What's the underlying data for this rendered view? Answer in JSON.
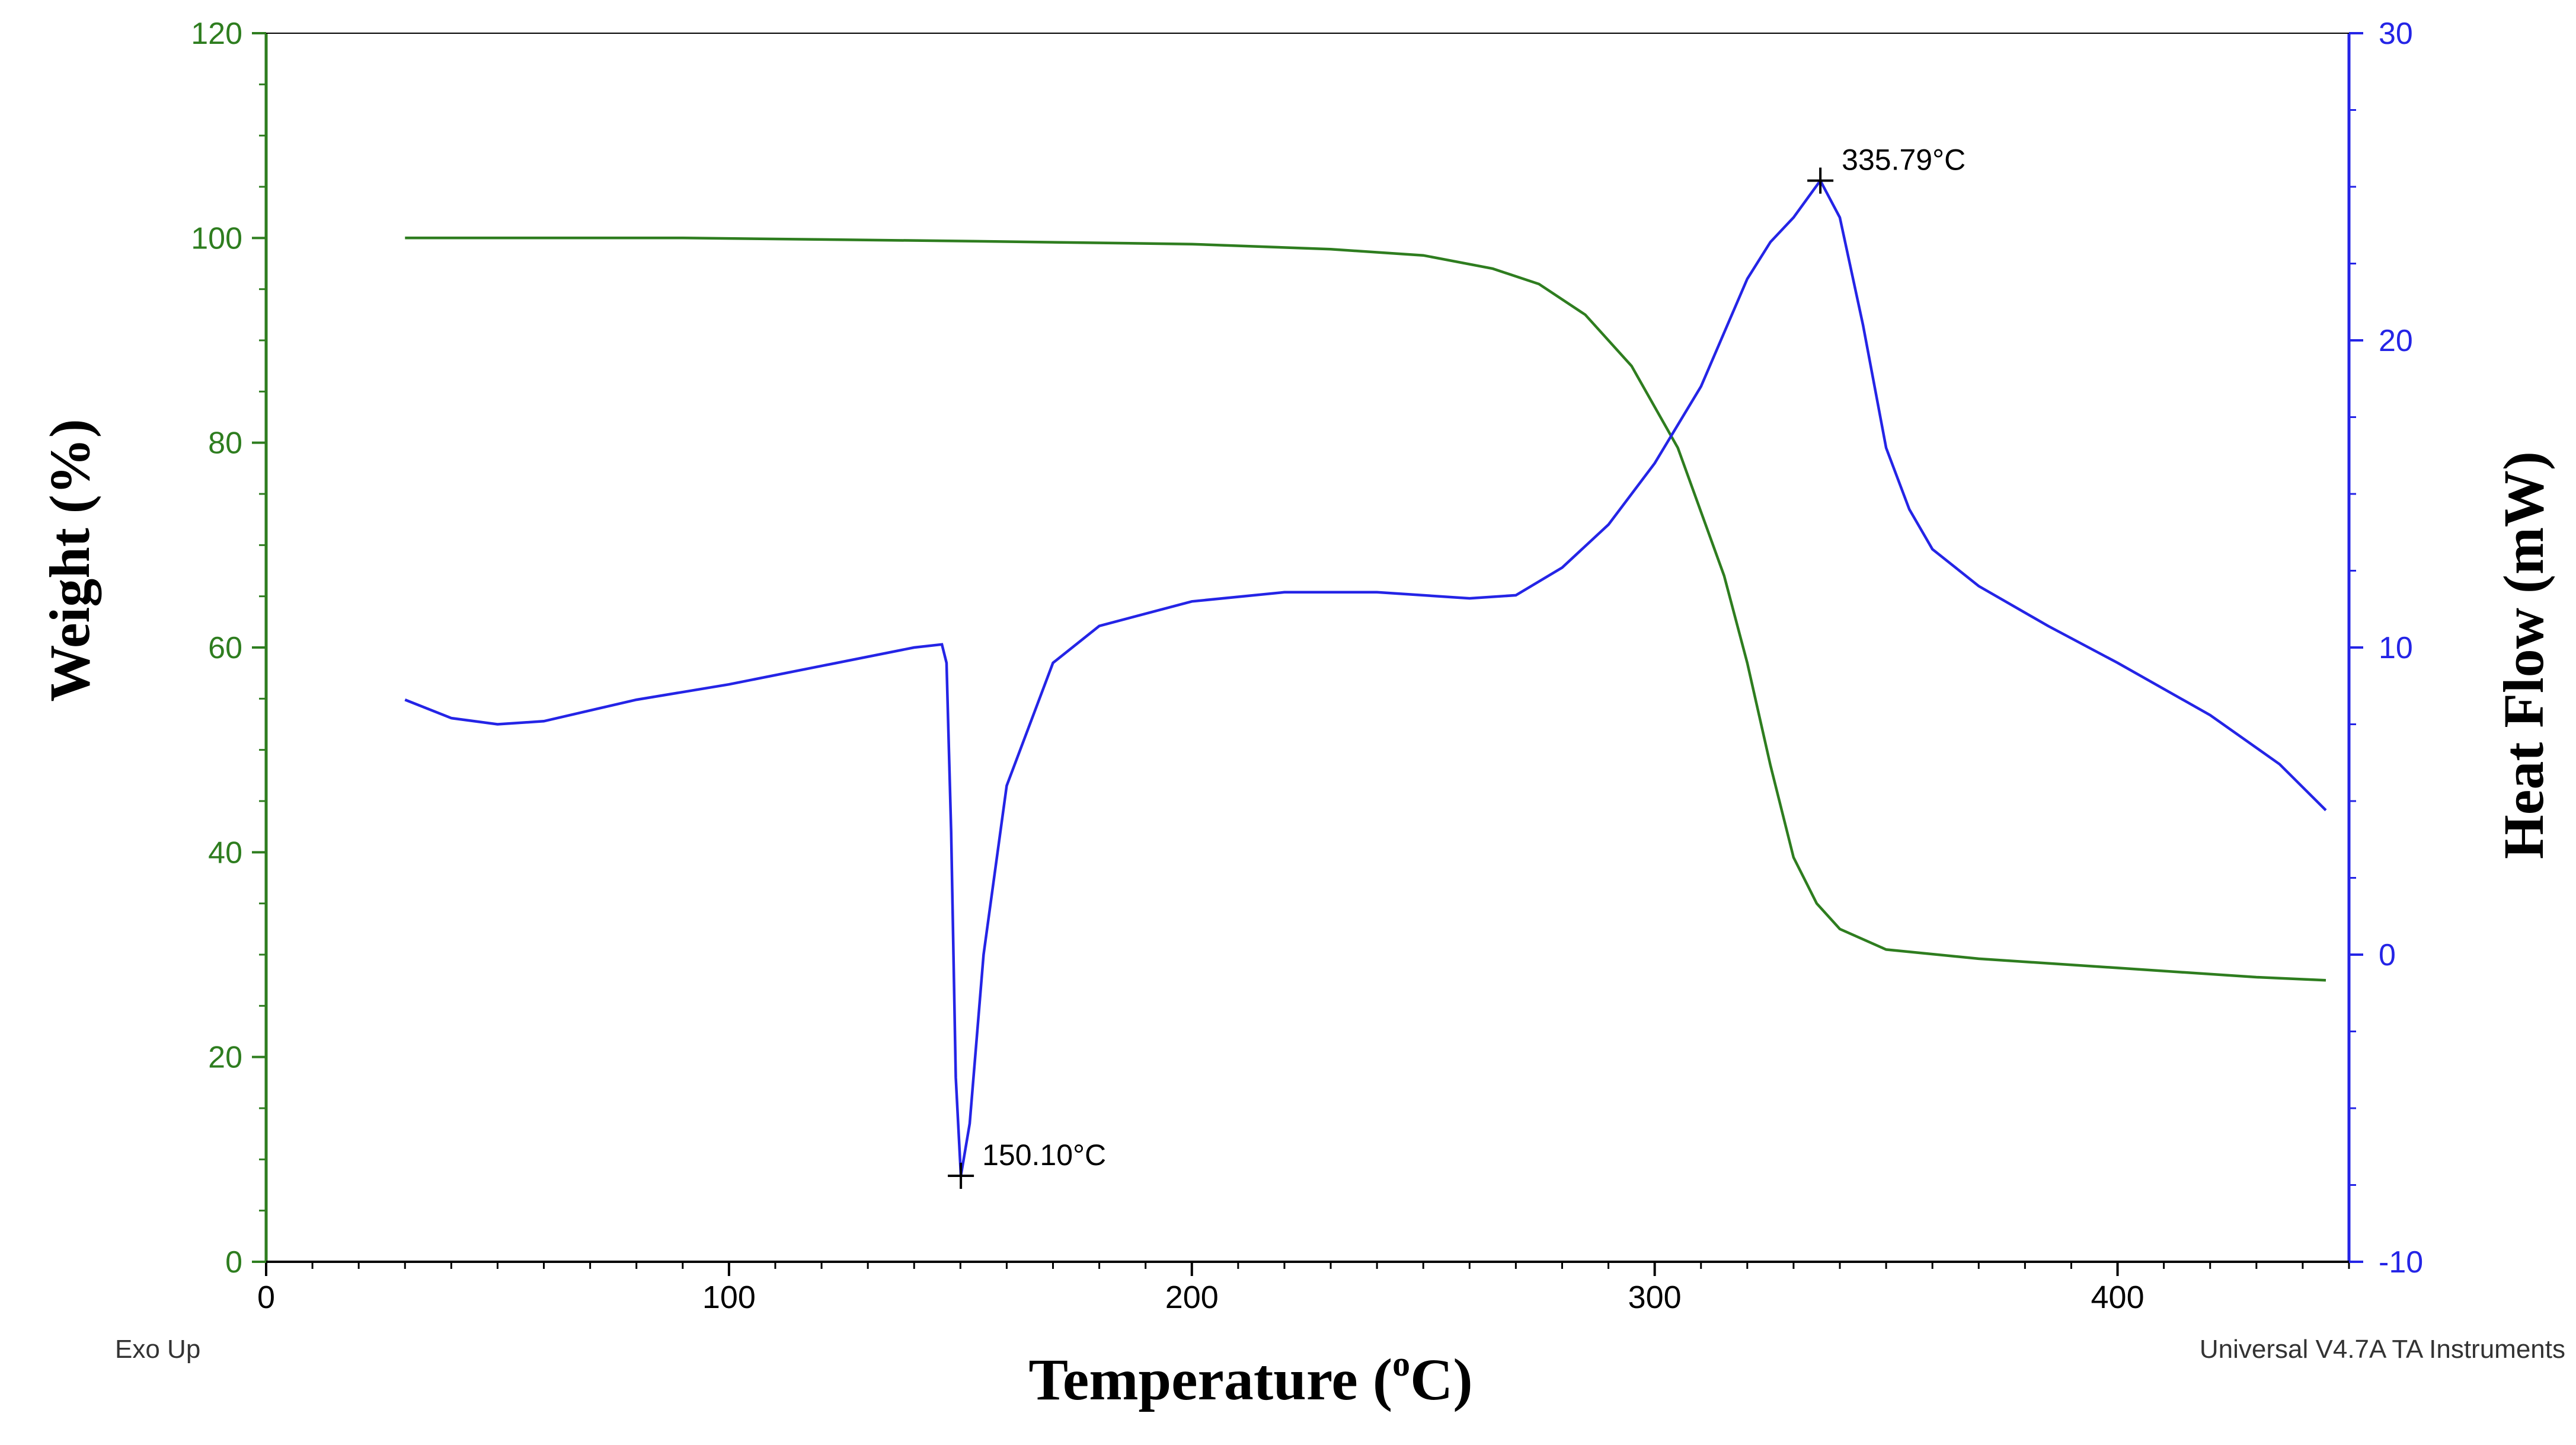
{
  "chart_data": {
    "type": "line",
    "xlabel": "Temperature (",
    "xlabel_sup": "o",
    "xlabel_unit": "C)",
    "ylabel_left": "Weight (%)",
    "ylabel_right": "Heat Flow (mW)",
    "footer_left": "Exo Up",
    "footer_right": "Universal V4.7A TA Instruments",
    "xlim": [
      0,
      450
    ],
    "ylim_left": [
      0,
      120
    ],
    "ylim_right": [
      -10,
      30
    ],
    "x_ticks": [
      "0",
      "100",
      "200",
      "300",
      "400"
    ],
    "y_left_ticks": [
      "0",
      "20",
      "40",
      "60",
      "80",
      "100",
      "120"
    ],
    "y_right_ticks": [
      "-10",
      "0",
      "10",
      "20",
      "30"
    ],
    "colors": {
      "weight": "#2e7d1f",
      "heat_flow": "#2424e6",
      "annotation": "#000000"
    },
    "series": [
      {
        "key": "weight",
        "axis": "left",
        "x": [
          30,
          90,
          150,
          200,
          230,
          250,
          265,
          275,
          285,
          295,
          305,
          315,
          320,
          325,
          330,
          335,
          340,
          350,
          370,
          400,
          430,
          445
        ],
        "y": [
          100,
          100,
          99.7,
          99.4,
          98.9,
          98.3,
          97,
          95.5,
          92.5,
          87.5,
          79.5,
          67,
          58.5,
          48.5,
          39.5,
          35,
          32.5,
          30.5,
          29.6,
          28.7,
          27.8,
          27.5
        ]
      },
      {
        "key": "heat_flow",
        "axis": "right",
        "x": [
          30,
          40,
          50,
          60,
          80,
          100,
          120,
          140,
          146,
          147,
          148,
          149,
          150.1,
          152,
          155,
          160,
          170,
          180,
          200,
          220,
          240,
          260,
          270,
          280,
          290,
          300,
          310,
          320,
          325,
          330,
          335.79,
          340,
          345,
          350,
          355,
          360,
          370,
          385,
          400,
          420,
          435,
          445
        ],
        "y": [
          8.3,
          7.7,
          7.5,
          7.6,
          8.3,
          8.8,
          9.4,
          10,
          10.1,
          9.5,
          4,
          -4,
          -7.2,
          -5.5,
          0,
          5.5,
          9.5,
          10.7,
          11.5,
          11.8,
          11.8,
          11.6,
          11.7,
          12.6,
          14,
          16,
          18.5,
          22,
          23.2,
          24,
          25.2,
          24,
          20.5,
          16.5,
          14.5,
          13.2,
          12,
          10.7,
          9.5,
          7.8,
          6.2,
          4.7
        ]
      }
    ],
    "annotations": [
      {
        "x": 150.1,
        "y": -7.2,
        "axis": "right",
        "label": "150.10°C"
      },
      {
        "x": 335.79,
        "y": 25.2,
        "axis": "right",
        "label": "335.79°C"
      }
    ]
  }
}
